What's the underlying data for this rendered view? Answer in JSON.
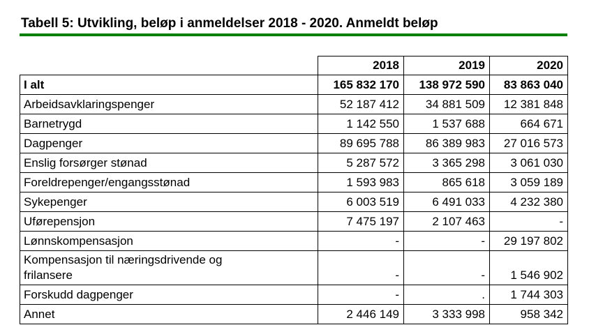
{
  "page": {
    "background": "#ffffff",
    "text_color": "#000000",
    "accent_green": "#008000"
  },
  "header": {
    "caption": "Tabell 5: Utvikling, beløp i anmeldelser 2018 - 2020. Anmeldt beløp"
  },
  "table": {
    "columns": [
      "2018",
      "2019",
      "2020"
    ],
    "rows": [
      {
        "label": "I alt",
        "bold": true,
        "values": [
          "165 832 170",
          "138 972 590",
          "83 863 040"
        ]
      },
      {
        "label": "Arbeidsavklaringspenger",
        "values": [
          "52 187 412",
          "34 881 509",
          "12 381 848"
        ]
      },
      {
        "label": "Barnetrygd",
        "values": [
          "1 142 550",
          "1 537 688",
          "664 671"
        ]
      },
      {
        "label": "Dagpenger",
        "values": [
          "89 695 788",
          "86 389 983",
          "27 016 573"
        ]
      },
      {
        "label": "Enslig forsørger stønad",
        "values": [
          "5 287 572",
          "3 365 298",
          "3 061 030"
        ]
      },
      {
        "label": "Foreldrepenger/engangsstønad",
        "values": [
          "1 593 983",
          "865 618",
          "3 059 189"
        ]
      },
      {
        "label": "Sykepenger",
        "values": [
          "6 003 519",
          "6 491 033",
          "4 232 380"
        ]
      },
      {
        "label": "Uførepensjon",
        "values": [
          "7 475 197",
          "2 107 463",
          "-"
        ]
      },
      {
        "label": "Lønnskompensasjon",
        "values": [
          "-",
          "-",
          "29 197 802"
        ]
      },
      {
        "label": "Kompensasjon til næringsdrivende og\nfrilansere",
        "values": [
          "-",
          "-",
          "1 546 902"
        ]
      },
      {
        "label": "Forskudd dagpenger",
        "values": [
          "-",
          ".",
          "1 744 303"
        ]
      },
      {
        "label": "Annet",
        "values": [
          "2 446 149",
          "3 333 998",
          "958 342"
        ]
      }
    ]
  }
}
